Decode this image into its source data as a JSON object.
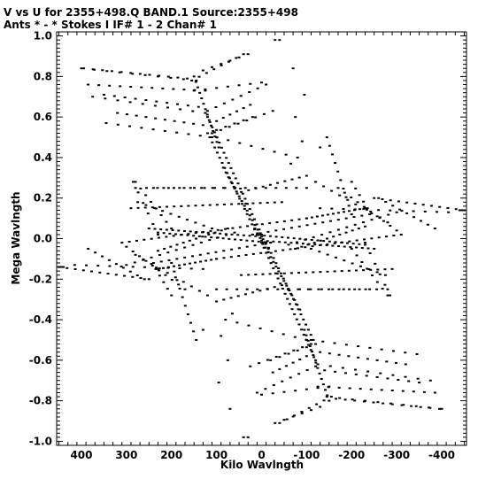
{
  "header": {
    "line1": "V vs U for 2355+498.Q BAND.1   Source:2355+498",
    "line2": "Ants * - *     Stokes I  IF# 1 - 2  Chan# 1"
  },
  "chart_data": {
    "type": "scatter",
    "xlabel": "Kilo Wavlngth",
    "ylabel": "Mega Wavlngth",
    "xlim": [
      455,
      -455
    ],
    "ylim": [
      -1.02,
      1.02
    ],
    "x_ticks": [
      400,
      300,
      200,
      100,
      0,
      -100,
      -200,
      -300,
      -400
    ],
    "x_tick_labels": [
      "400",
      "300",
      "200",
      "100",
      "0",
      "-100",
      "-200",
      "-300",
      "-400"
    ],
    "y_ticks": [
      1.0,
      0.8,
      0.6,
      0.4,
      0.2,
      0.0,
      -0.2,
      -0.4,
      -0.6,
      -0.8,
      -1.0
    ],
    "y_tick_labels": [
      "1.0",
      "0.8",
      "0.6",
      "0.4",
      "0.2",
      "0.0",
      "-0.2",
      "-0.4",
      "-0.6",
      "-0.8",
      "-1.0"
    ],
    "tracks": [
      {
        "from": [
          400,
          0.84
        ],
        "to": [
          145,
          0.78
        ],
        "n": 10
      },
      {
        "from": [
          375,
          0.7
        ],
        "to": [
          125,
          0.62
        ],
        "n": 10
      },
      {
        "from": [
          345,
          0.57
        ],
        "to": [
          110,
          0.5
        ],
        "n": 10
      },
      {
        "from": [
          155,
          0.78
        ],
        "to": [
          40,
          0.91
        ],
        "n": 8
      },
      {
        "from": [
          120,
          0.63
        ],
        "to": [
          -10,
          0.76
        ],
        "n": 8
      },
      {
        "from": [
          110,
          0.52
        ],
        "to": [
          -25,
          0.63
        ],
        "n": 8
      },
      {
        "from": [
          -30,
          0.98
        ],
        "to": [
          -30,
          0.98
        ],
        "n": 1
      },
      {
        "from": [
          -95,
          0.71
        ],
        "to": [
          -95,
          0.71
        ],
        "n": 1
      },
      {
        "from": [
          120,
          0.6
        ],
        "to": [
          0,
          0.02
        ],
        "n": 24
      },
      {
        "from": [
          85,
          0.35
        ],
        "to": [
          -15,
          -0.05
        ],
        "n": 18
      },
      {
        "from": [
          -10,
          -0.02
        ],
        "to": [
          -115,
          -0.5
        ],
        "n": 20
      },
      {
        "from": [
          -95,
          -0.45
        ],
        "to": [
          -150,
          -0.8
        ],
        "n": 14
      },
      {
        "from": [
          310,
          -0.02
        ],
        "to": [
          -100,
          0.1
        ],
        "n": 26
      },
      {
        "from": [
          290,
          0.15
        ],
        "to": [
          -45,
          0.18
        ],
        "n": 22
      },
      {
        "from": [
          230,
          0.03
        ],
        "to": [
          -20,
          -0.02
        ],
        "n": 20
      },
      {
        "from": [
          0,
          -0.01
        ],
        "to": [
          -250,
          -0.05
        ],
        "n": 20
      },
      {
        "from": [
          -100,
          0.1
        ],
        "to": [
          -230,
          0.15
        ],
        "n": 12
      },
      {
        "from": [
          415,
          -0.13
        ],
        "to": [
          130,
          -0.15
        ],
        "n": 12
      },
      {
        "from": [
          300,
          -0.13
        ],
        "to": [
          60,
          0.03
        ],
        "n": 14
      },
      {
        "from": [
          240,
          -0.12
        ],
        "to": [
          -20,
          -0.02
        ],
        "n": 16
      },
      {
        "from": [
          45,
          0.23
        ],
        "to": [
          -100,
          0.31
        ],
        "n": 10
      },
      {
        "from": [
          -120,
          0.28
        ],
        "to": [
          -280,
          0.08
        ],
        "n": 10
      },
      {
        "from": [
          -170,
          0.25
        ],
        "to": [
          -300,
          0.04
        ],
        "n": 10
      },
      {
        "from": [
          -260,
          0.2
        ],
        "to": [
          -385,
          0.05
        ],
        "n": 9
      },
      {
        "from": [
          -250,
          0.2
        ],
        "to": [
          -450,
          0.14
        ],
        "n": 12
      },
      {
        "from": [
          -75,
          -0.05
        ],
        "to": [
          -230,
          0.06
        ],
        "n": 12
      },
      {
        "from": [
          100,
          -0.25
        ],
        "to": [
          -240,
          -0.25
        ],
        "n": 16
      },
      {
        "from": [
          -60,
          -0.25
        ],
        "to": [
          -280,
          -0.25
        ],
        "n": 10
      },
      {
        "from": [
          80,
          -0.4
        ],
        "to": [
          -100,
          -0.5
        ],
        "n": 8
      },
      {
        "from": [
          -110,
          -0.05
        ],
        "to": [
          -275,
          -0.18
        ],
        "n": 10
      },
      {
        "from": [
          -200,
          -0.05
        ],
        "to": [
          -280,
          -0.28
        ],
        "n": 8
      },
      {
        "from": [
          -230,
          -0.02
        ],
        "to": [
          -285,
          -0.28
        ],
        "n": 6
      },
      {
        "from": [
          200,
          -0.12
        ],
        "to": [
          145,
          -0.5
        ],
        "n": 10
      },
      {
        "from": [
          235,
          -0.15
        ],
        "to": [
          200,
          -0.28
        ],
        "n": 5
      },
      {
        "from": [
          -20,
          -0.6
        ],
        "to": [
          -120,
          -0.52
        ],
        "n": 6
      },
      {
        "from": [
          -25,
          -0.66
        ],
        "to": [
          -100,
          -0.58
        ],
        "n": 6
      },
      {
        "from": [
          -130,
          -0.56
        ],
        "to": [
          -320,
          -0.62
        ],
        "n": 10
      },
      {
        "from": [
          -140,
          -0.65
        ],
        "to": [
          -350,
          -0.71
        ],
        "n": 10
      },
      {
        "from": [
          -125,
          -0.73
        ],
        "to": [
          -385,
          -0.76
        ],
        "n": 12
      },
      {
        "from": [
          0,
          -0.77
        ],
        "to": [
          -150,
          -0.73
        ],
        "n": 7
      },
      {
        "from": [
          -30,
          -0.91
        ],
        "to": [
          -130,
          -0.83
        ],
        "n": 6
      },
      {
        "from": [
          -165,
          -0.79
        ],
        "to": [
          -395,
          -0.84
        ],
        "n": 12
      },
      {
        "from": [
          70,
          -0.84
        ],
        "to": [
          70,
          -0.84
        ],
        "n": 1
      },
      {
        "from": [
          40,
          -0.98
        ],
        "to": [
          40,
          -0.98
        ],
        "n": 1
      },
      {
        "from": [
          75,
          -0.6
        ],
        "to": [
          75,
          -0.6
        ],
        "n": 1
      },
      {
        "from": [
          130,
          -0.45
        ],
        "to": [
          130,
          -0.45
        ],
        "n": 1
      },
      {
        "from": [
          -90,
          0.48
        ],
        "to": [
          -90,
          0.48
        ],
        "n": 1
      },
      {
        "from": [
          -65,
          0.37
        ],
        "to": [
          -65,
          0.37
        ],
        "n": 1
      },
      {
        "from": [
          -440,
          0.14
        ],
        "to": [
          -440,
          0.14
        ],
        "n": 1
      },
      {
        "from": [
          445,
          -0.14
        ],
        "to": [
          445,
          -0.14
        ],
        "n": 1
      }
    ]
  }
}
